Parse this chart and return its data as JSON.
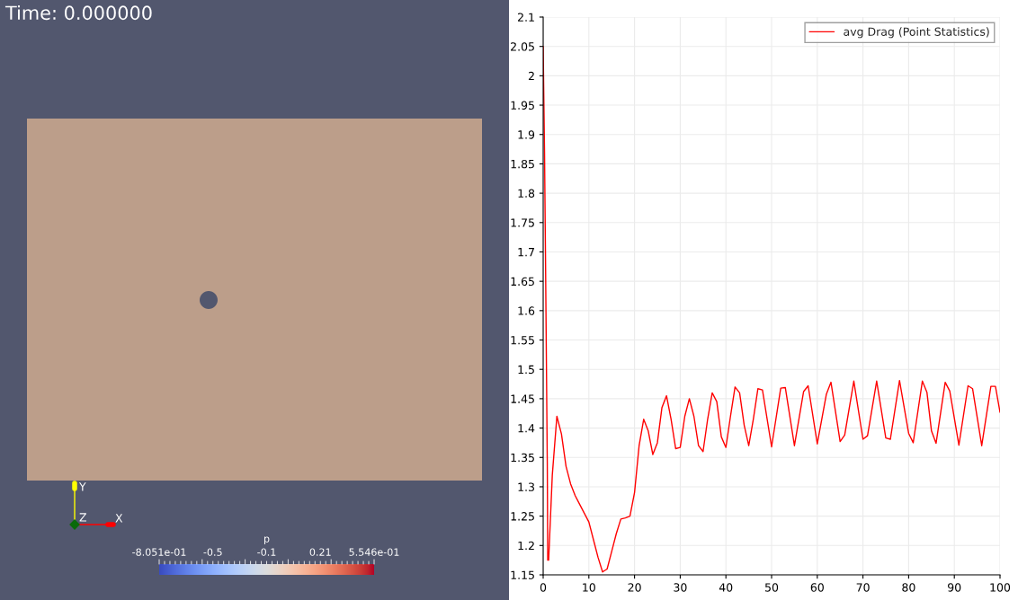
{
  "chart_data": [
    {
      "type": "other",
      "title": "Time: 0.000000",
      "clabel": "p",
      "annotations": [
        "X",
        "Y",
        "Z",
        "-8.051e-01",
        "-0.5",
        "-0.1",
        "0.21",
        "5.546e-01"
      ]
    },
    {
      "type": "line",
      "xlim": [
        0,
        100
      ],
      "ylim": [
        1.15,
        2.1
      ],
      "xticks": [
        0,
        10,
        20,
        30,
        40,
        50,
        60,
        70,
        80,
        90,
        100
      ],
      "yticks": [
        1.15,
        1.2,
        1.25,
        1.3,
        1.35,
        1.4,
        1.45,
        1.5,
        1.55,
        1.6,
        1.65,
        1.7,
        1.75,
        1.8,
        1.85,
        1.9,
        1.95,
        2,
        2.05,
        2.1
      ],
      "grid": true,
      "legend": "top right",
      "marker": "none",
      "line_style": "solid",
      "series": [
        {
          "name": "avg Drag (Point Statistics)",
          "color": "#ff0000",
          "x": [
            0,
            0.3,
            0.5,
            0.7,
            0.9,
            1,
            1.2,
            1.5,
            2,
            3,
            4,
            5,
            6,
            7,
            8,
            9,
            10,
            11,
            12,
            13,
            14,
            15,
            16,
            17,
            18,
            19,
            20,
            21,
            22,
            23,
            24,
            25,
            26,
            27,
            28,
            29,
            30,
            31,
            32,
            33,
            34,
            35,
            36,
            37,
            38,
            39,
            40,
            41,
            42,
            43,
            44,
            45,
            46,
            47,
            48,
            50,
            52,
            53,
            55,
            57,
            58,
            60,
            62,
            63,
            65,
            66,
            68,
            70,
            71,
            73,
            75,
            76,
            78,
            80,
            81,
            83,
            84,
            85,
            86,
            88,
            89,
            91,
            93,
            94,
            96,
            98,
            99,
            100
          ],
          "values": [
            2.05,
            1.87,
            1.7,
            1.52,
            1.34,
            1.175,
            1.175,
            1.23,
            1.32,
            1.42,
            1.39,
            1.335,
            1.305,
            1.285,
            1.27,
            1.255,
            1.24,
            1.21,
            1.18,
            1.155,
            1.16,
            1.19,
            1.22,
            1.245,
            1.247,
            1.25,
            1.29,
            1.37,
            1.415,
            1.395,
            1.355,
            1.375,
            1.435,
            1.455,
            1.415,
            1.365,
            1.367,
            1.42,
            1.45,
            1.42,
            1.37,
            1.36,
            1.415,
            1.46,
            1.445,
            1.385,
            1.367,
            1.42,
            1.47,
            1.46,
            1.405,
            1.37,
            1.415,
            1.467,
            1.465,
            1.368,
            1.468,
            1.469,
            1.37,
            1.462,
            1.472,
            1.373,
            1.458,
            1.478,
            1.377,
            1.388,
            1.48,
            1.381,
            1.387,
            1.48,
            1.383,
            1.381,
            1.481,
            1.391,
            1.375,
            1.48,
            1.461,
            1.395,
            1.374,
            1.478,
            1.463,
            1.371,
            1.472,
            1.467,
            1.37,
            1.471,
            1.471,
            1.427
          ]
        }
      ]
    }
  ]
}
